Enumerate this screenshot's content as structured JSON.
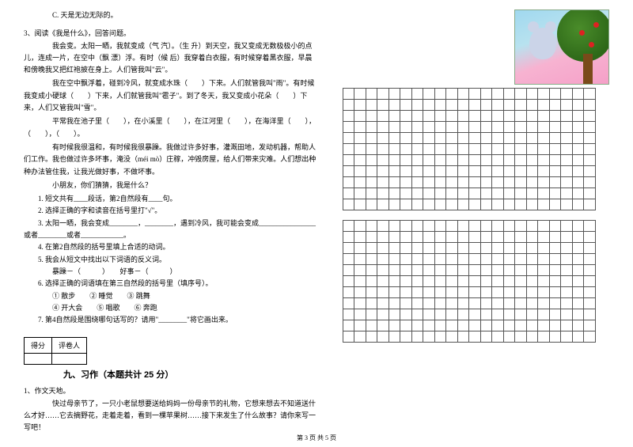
{
  "left": {
    "optC": "C. 天是无边无际的。",
    "q3_intro": "3、阅读《我是什么》，回答问题。",
    "p1": "我会变。太阳一晒，我就变成（气 汽）。（生 升）到天空，我又变成无数极极小的点儿，连成一片，在空中（飘 漂）浮。有时（候 后）我穿着白衣服，有时候穿着黑衣服，早晨和傍晚我又把红袍披在身上。人们管我叫\"云\"。",
    "p2": "我在空中飘浮着，碰到冷风，就变成水珠（　　）下来。人们就管我叫\"雨\"。有时候我变成小硬球（　　）下来，人们就管我叫\"雹子\"。到了冬天，我又变成小花朵（　　）下来，人们又管我叫\"雪\"。",
    "p3": "平常我在池子里（　　），在小溪里（　　），在江河里（　　），在海洋里（　　），（　　），（　　）。",
    "p4": "有时候我很温和，有时候我很暴躁。我做过许多好事，灌溉田地，发动机器，帮助人们工作。我也做过许多坏事，淹没（méi mò）庄稼，冲毁房屋，给人们带来灾难。人们想出种种办法管住我，让我光做好事，不做坏事。",
    "p5": "小朋友，你们猜猜，我是什么？",
    "sq1": "1. 短文共有____段话，第2自然段有____句。",
    "sq2": "2. 选择正确的字和读音在括号里打\"√\"。",
    "sq3": "3. 太阳一晒，我会变成________，________，遇到冷风，我可能会变成________________或者________或者____________。",
    "sq4": "4. 在第2自然段的括号里填上合适的动词。",
    "sq5": "5. 我会从短文中找出以下词语的反义词。",
    "sq5b": "暴躁－（　　　）　　好事－（　　　）",
    "sq6": "6. 选择正确的词语填在第三自然段的括号里（填序号）。",
    "sq6b": "① 散步　　② 睡觉　　③ 跳舞",
    "sq6c": "④ 开大会　　⑤ 唱歌　　⑥ 奔跑",
    "sq7": "7. 第4自然段是围绕哪句话写的？请用\"________\"将它画出来。",
    "score_col1": "得分",
    "score_col2": "评卷人",
    "section9": "九、习作（本题共计 25 分）",
    "zw_title": "1、作文天地。",
    "zw_body": "快过母亲节了，一只小老鼠想要送给妈妈一份母亲节的礼物，它想来想去不知道送什么才好……它去摘野花，走着走着，看到一棵苹果树……接下来发生了什么故事？请你来写一写吧！"
  },
  "page_num": "第 3 页 共 5 页",
  "grid": {
    "cols": 22,
    "block_rows": 11
  }
}
